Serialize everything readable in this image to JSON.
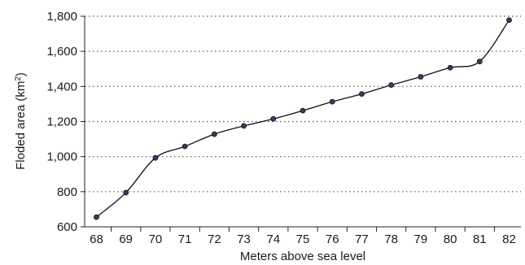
{
  "chart_data": {
    "type": "line",
    "title": "",
    "xlabel": "Meters above sea level",
    "ylabel": "Floded area (km",
    "ylabel_sup": "2",
    "ylabel_suffix": ")",
    "x": [
      68,
      69,
      70,
      71,
      72,
      73,
      74,
      75,
      76,
      77,
      78,
      79,
      80,
      81,
      82
    ],
    "series": [
      {
        "values": [
          655,
          795,
          993,
          1058,
          1128,
          1175,
          1215,
          1262,
          1313,
          1357,
          1408,
          1455,
          1507,
          1542,
          1778
        ]
      }
    ],
    "xlim": [
      67.6,
      82.4
    ],
    "ylim": [
      600,
      1800
    ],
    "yticks": [
      600,
      800,
      1000,
      1200,
      1400,
      1600,
      1800
    ],
    "ytick_labels": [
      "600",
      "800",
      "1,000",
      "1,200",
      "1,400",
      "1,600",
      "1,800"
    ],
    "xtick_labels": [
      "68",
      "69",
      "70",
      "71",
      "72",
      "73",
      "74",
      "75",
      "76",
      "77",
      "78",
      "79",
      "80",
      "81",
      "82"
    ],
    "grid": "horizontal-dotted",
    "colors": {
      "line": "#111111",
      "marker_fill": "#3d3a63",
      "marker_stroke": "#111111",
      "grid": "#555555",
      "axis": "#222222"
    }
  }
}
